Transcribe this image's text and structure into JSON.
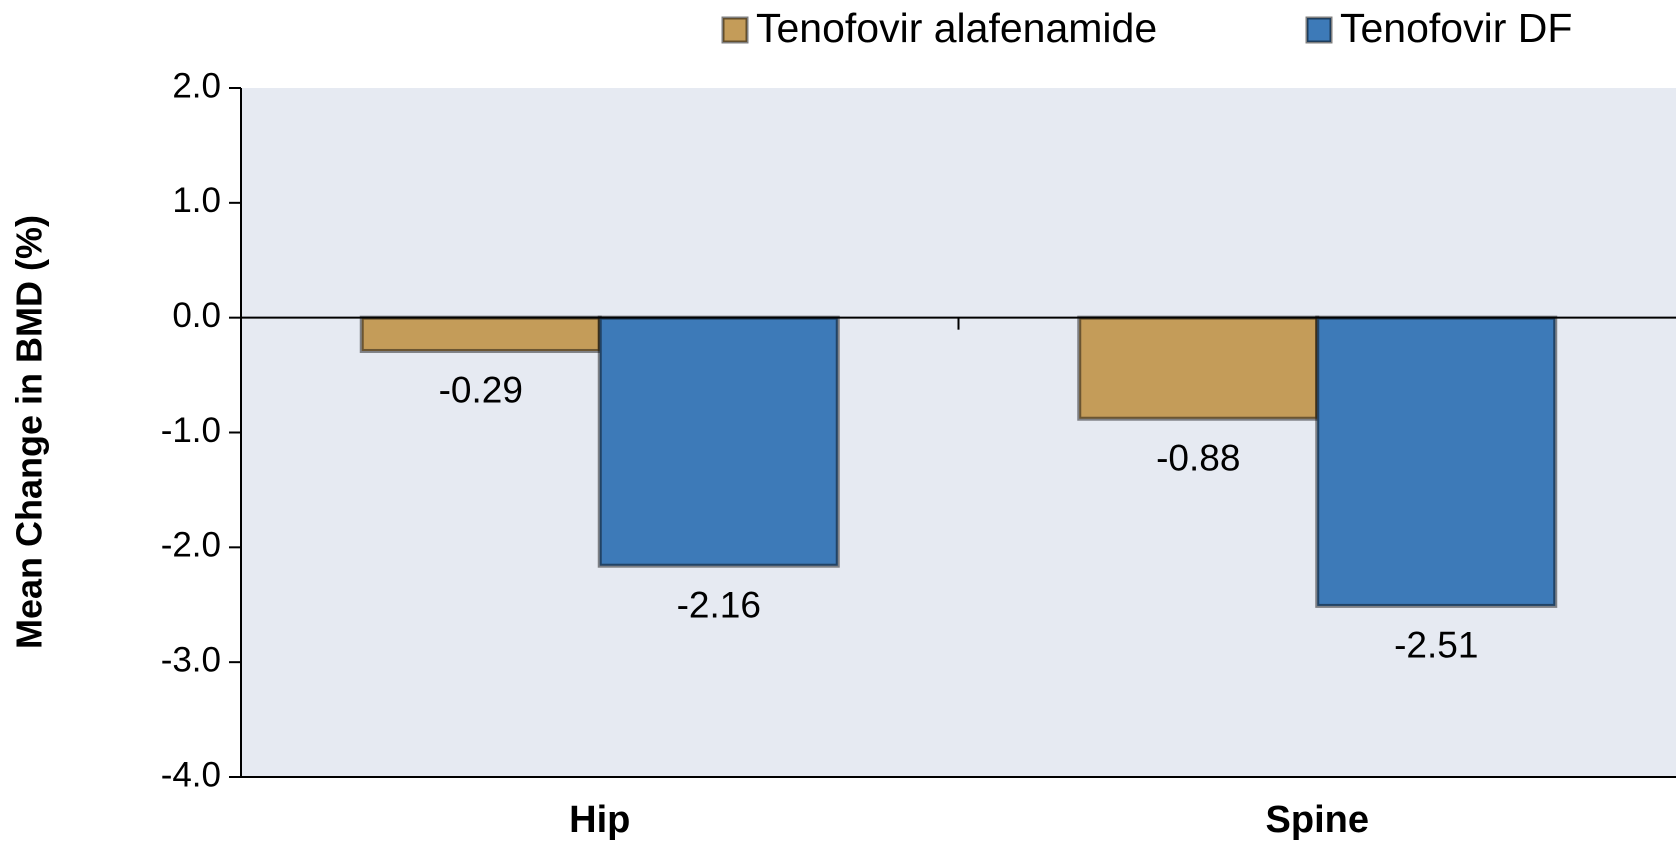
{
  "chart_data": {
    "type": "bar",
    "y_label": "Mean Change in BMD (%)",
    "categories": [
      "Hip",
      "Spine"
    ],
    "series": [
      {
        "name": "Tenofovir alafenamide",
        "color": "#c49c59",
        "values": [
          -0.29,
          -0.88
        ]
      },
      {
        "name": "Tenofovir DF",
        "color": "#3d7ab8",
        "values": [
          -2.16,
          -2.51
        ]
      }
    ],
    "ylim": [
      -4,
      2
    ],
    "yticks": [
      {
        "value": 2,
        "label": "2.0"
      },
      {
        "value": 1,
        "label": "1.0"
      },
      {
        "value": 0,
        "label": "0.0"
      },
      {
        "value": -1,
        "label": "-1.0"
      },
      {
        "value": -2,
        "label": "-2.0"
      },
      {
        "value": -3,
        "label": "-3.0"
      },
      {
        "value": -4,
        "label": "-4.0"
      }
    ],
    "plot_background": "#e6eaf2"
  }
}
